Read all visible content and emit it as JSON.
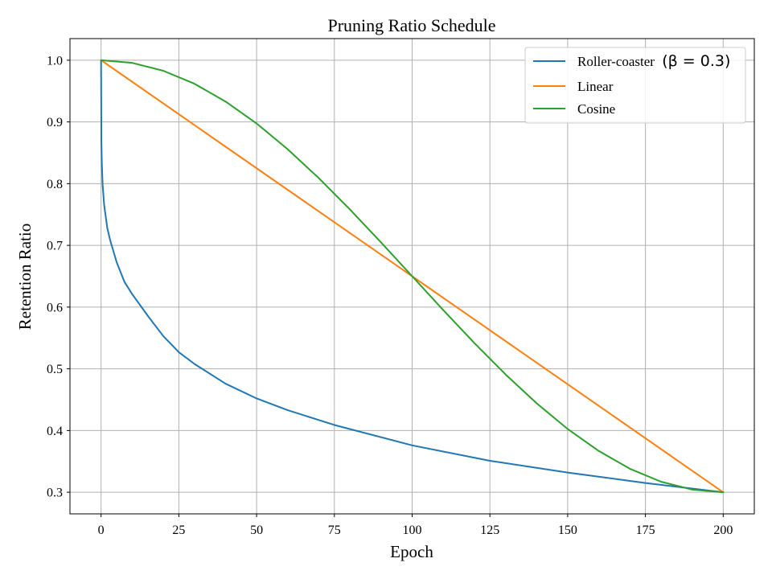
{
  "chart_data": {
    "type": "line",
    "title": "Pruning Ratio Schedule",
    "xlabel": "Epoch",
    "ylabel": "Retention Ratio",
    "xlim": [
      -10,
      210
    ],
    "ylim": [
      0.265,
      1.035
    ],
    "xticks": [
      0,
      25,
      50,
      75,
      100,
      125,
      150,
      175,
      200
    ],
    "xtick_labels": [
      "0",
      "25",
      "50",
      "75",
      "100",
      "125",
      "150",
      "175",
      "200"
    ],
    "yticks": [
      0.3,
      0.4,
      0.5,
      0.6,
      0.7,
      0.8,
      0.9,
      1.0
    ],
    "ytick_labels": [
      "0.3",
      "0.4",
      "0.5",
      "0.6",
      "0.7",
      "0.8",
      "0.9",
      "1.0"
    ],
    "grid": true,
    "legend_position": "upper-right",
    "series": [
      {
        "name": "Roller-coaster",
        "legend_label": "Roller-coaster",
        "legend_math": "(β = 0.3)",
        "color": "#1f77b4",
        "x": [
          0,
          0.1,
          0.25,
          0.5,
          1,
          2,
          3,
          5,
          7.5,
          10,
          15,
          20,
          25,
          30,
          40,
          50,
          60,
          75,
          100,
          125,
          150,
          175,
          200
        ],
        "y": [
          1.0,
          0.868,
          0.832,
          0.798,
          0.765,
          0.728,
          0.707,
          0.673,
          0.641,
          0.621,
          0.586,
          0.553,
          0.527,
          0.508,
          0.476,
          0.452,
          0.433,
          0.409,
          0.376,
          0.351,
          0.332,
          0.315,
          0.3
        ]
      },
      {
        "name": "Linear",
        "legend_label": "Linear",
        "color": "#ff7f0e",
        "x": [
          0,
          200
        ],
        "y": [
          1.0,
          0.3
        ]
      },
      {
        "name": "Cosine",
        "legend_label": "Cosine",
        "color": "#2ca02c",
        "x": [
          0,
          10,
          20,
          30,
          40,
          50,
          60,
          70,
          80,
          90,
          100,
          110,
          120,
          130,
          140,
          150,
          160,
          170,
          180,
          190,
          200
        ],
        "y": [
          1.0,
          0.9957,
          0.9829,
          0.9619,
          0.9331,
          0.8975,
          0.8557,
          0.8089,
          0.7582,
          0.7048,
          0.65,
          0.5952,
          0.5418,
          0.4911,
          0.4443,
          0.4025,
          0.3669,
          0.3381,
          0.3171,
          0.3043,
          0.3
        ]
      }
    ]
  }
}
